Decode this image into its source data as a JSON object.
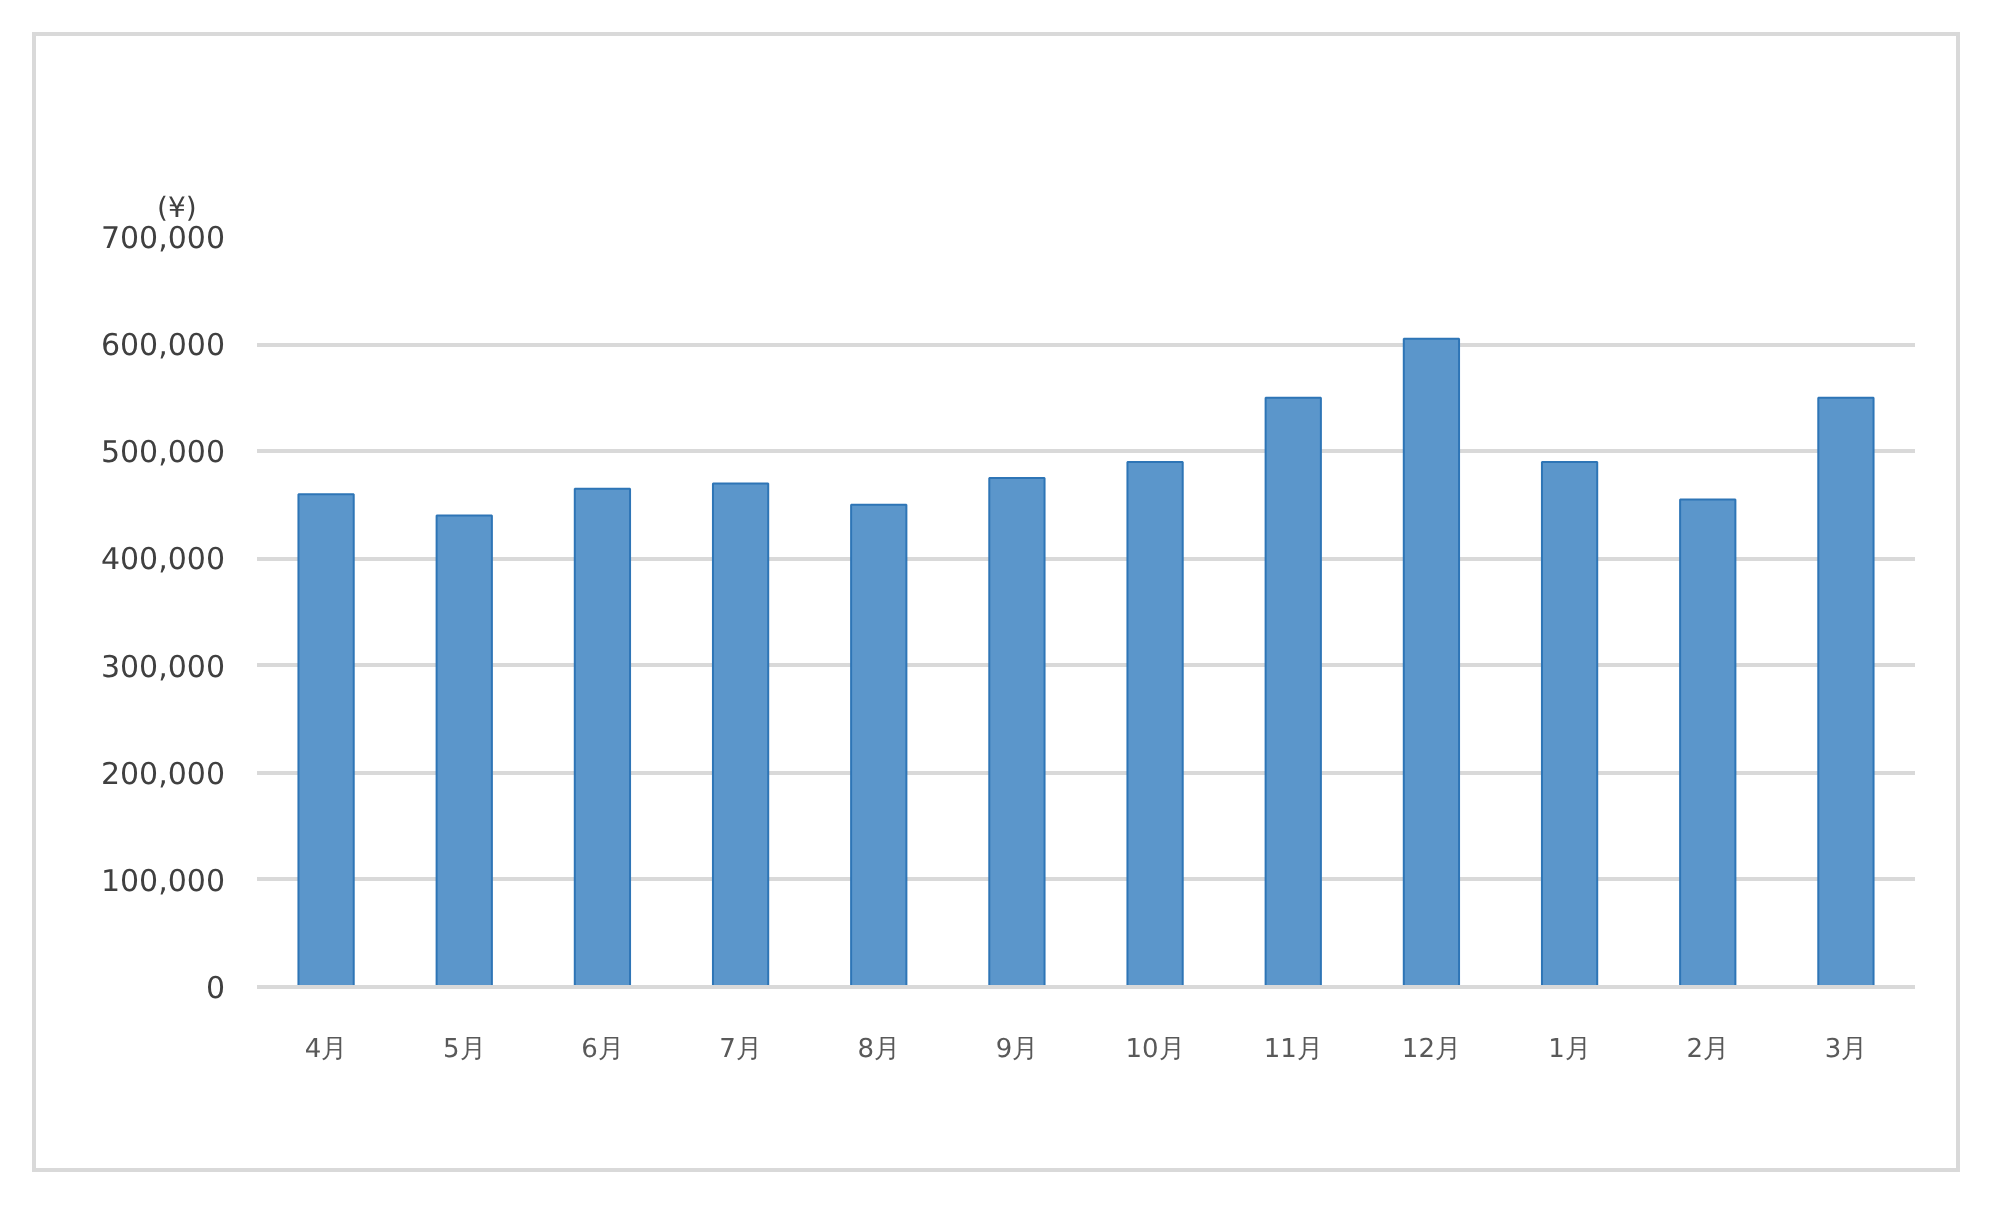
{
  "chart_data": {
    "type": "bar",
    "ylabel": "(¥)",
    "categories": [
      "4月",
      "5月",
      "6月",
      "7月",
      "8月",
      "9月",
      "10月",
      "11月",
      "12月",
      "1月",
      "2月",
      "3月"
    ],
    "values": [
      460000,
      440000,
      465000,
      470000,
      450000,
      475000,
      490000,
      550000,
      605000,
      490000,
      455000,
      550000
    ],
    "color": "#5b96cb",
    "ylim": [
      0,
      700000
    ],
    "yticks": [
      {
        "value": 0,
        "label": "0"
      },
      {
        "value": 100000,
        "label": "100,000"
      },
      {
        "value": 200000,
        "label": "200,000"
      },
      {
        "value": 300000,
        "label": "300,000"
      },
      {
        "value": 400000,
        "label": "400,000"
      },
      {
        "value": 500000,
        "label": "500,000"
      },
      {
        "value": 600000,
        "label": "600,000"
      },
      {
        "value": 700000,
        "label": "700,000"
      }
    ],
    "grid": "y"
  }
}
